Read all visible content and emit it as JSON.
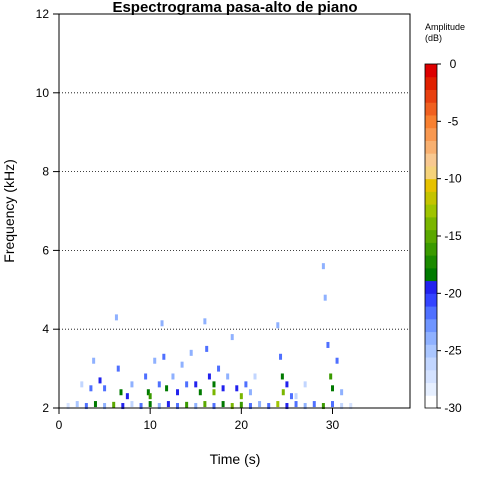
{
  "chart_data": {
    "type": "heatmap",
    "title": "Espectrograma pasa-alto de piano",
    "xlabel": "Time (s)",
    "ylabel": "Frequency (kHz)",
    "xlim": [
      0,
      38.5
    ],
    "ylim": [
      2,
      12
    ],
    "xticks": [
      "0",
      "10",
      "20",
      "30"
    ],
    "yticks": [
      "2",
      "4",
      "6",
      "8",
      "10",
      "12"
    ],
    "x_tick_values": [
      0,
      10,
      20,
      30
    ],
    "y_tick_values": [
      2,
      4,
      6,
      8,
      10,
      12
    ],
    "grid": "horizontal dotted lines at y ticks",
    "legend": {
      "title_line1": "Amplitude",
      "title_line2": "(dB)",
      "range": [
        -30,
        0
      ],
      "ticks": [
        "0",
        "-5",
        "-10",
        "-15",
        "-20",
        "-25",
        "-30"
      ],
      "tick_values": [
        0,
        -5,
        -10,
        -15,
        -20,
        -25,
        -30
      ],
      "colors_low_to_high": [
        "#ffffff",
        "#e6efff",
        "#d4e2ff",
        "#c2d6ff",
        "#aac6ff",
        "#8fb1ff",
        "#6f95ff",
        "#4f70ff",
        "#3344ff",
        "#2222ee",
        "#007a00",
        "#1b8a00",
        "#3a9a00",
        "#5aa800",
        "#7ab600",
        "#9fc400",
        "#c4c400",
        "#e6c200",
        "#f5d27a",
        "#f8c890",
        "#f8b070",
        "#f89850",
        "#f88030",
        "#f06020",
        "#e84010",
        "#e02000",
        "#dd0000"
      ]
    },
    "series": [
      {
        "name": "",
        "points": [
          [
            1,
            2.05,
            -28
          ],
          [
            2,
            2.1,
            -25
          ],
          [
            3,
            2.05,
            -22
          ],
          [
            4,
            2.1,
            -18
          ],
          [
            5,
            2.05,
            -24
          ],
          [
            6,
            2.08,
            -15
          ],
          [
            7,
            2.05,
            -20
          ],
          [
            8,
            2.1,
            -26
          ],
          [
            9,
            2.05,
            -22
          ],
          [
            10,
            2.1,
            -18
          ],
          [
            11,
            2.05,
            -24
          ],
          [
            12,
            2.1,
            -20
          ],
          [
            13,
            2.05,
            -22
          ],
          [
            14,
            2.08,
            -16
          ],
          [
            15,
            2.05,
            -24
          ],
          [
            16,
            2.1,
            -15
          ],
          [
            17,
            2.05,
            -22
          ],
          [
            18,
            2.1,
            -18
          ],
          [
            19,
            2.05,
            -14
          ],
          [
            20,
            2.08,
            -16
          ],
          [
            21,
            2.05,
            -22
          ],
          [
            22,
            2.1,
            -24
          ],
          [
            23,
            2.05,
            -22
          ],
          [
            24,
            2.1,
            -13
          ],
          [
            25,
            2.05,
            -20
          ],
          [
            26,
            2.1,
            -22
          ],
          [
            27,
            2.05,
            -24
          ],
          [
            28,
            2.1,
            -22
          ],
          [
            29,
            2.05,
            -16
          ],
          [
            30,
            2.1,
            -22
          ],
          [
            31,
            2.05,
            -26
          ],
          [
            32,
            2.05,
            -28
          ],
          [
            2.5,
            2.6,
            -26
          ],
          [
            3.8,
            3.2,
            -24
          ],
          [
            3.5,
            2.5,
            -22
          ],
          [
            4.5,
            2.7,
            -20
          ],
          [
            5,
            2.5,
            -22
          ],
          [
            6.3,
            4.3,
            -24
          ],
          [
            6.5,
            3.0,
            -22
          ],
          [
            6.8,
            2.4,
            -18
          ],
          [
            7.5,
            2.3,
            -20
          ],
          [
            8,
            2.6,
            -24
          ],
          [
            9.5,
            2.8,
            -22
          ],
          [
            9.8,
            2.4,
            -18
          ],
          [
            10,
            2.3,
            -16
          ],
          [
            10.5,
            3.2,
            -24
          ],
          [
            11,
            2.6,
            -22
          ],
          [
            11.3,
            4.15,
            -24
          ],
          [
            11.5,
            3.3,
            -22
          ],
          [
            11.8,
            2.5,
            -18
          ],
          [
            12.5,
            2.8,
            -24
          ],
          [
            13,
            2.4,
            -20
          ],
          [
            13.5,
            3.1,
            -24
          ],
          [
            14,
            2.6,
            -22
          ],
          [
            14.5,
            3.4,
            -24
          ],
          [
            15,
            2.6,
            -20
          ],
          [
            15.5,
            2.4,
            -18
          ],
          [
            16,
            4.2,
            -24
          ],
          [
            16.2,
            3.5,
            -22
          ],
          [
            16.5,
            2.8,
            -20
          ],
          [
            17,
            2.4,
            -14
          ],
          [
            17,
            2.6,
            -18
          ],
          [
            17.5,
            3.0,
            -22
          ],
          [
            18,
            2.5,
            -20
          ],
          [
            18.5,
            2.8,
            -24
          ],
          [
            19,
            3.8,
            -24
          ],
          [
            19.5,
            2.5,
            -20
          ],
          [
            20,
            2.3,
            -14
          ],
          [
            20.5,
            2.6,
            -22
          ],
          [
            21,
            2.4,
            -24
          ],
          [
            21.5,
            2.8,
            -26
          ],
          [
            24,
            4.1,
            -24
          ],
          [
            24.3,
            3.3,
            -22
          ],
          [
            24.5,
            2.8,
            -18
          ],
          [
            24.6,
            2.4,
            -14
          ],
          [
            25,
            2.6,
            -20
          ],
          [
            25.5,
            2.3,
            -22
          ],
          [
            29,
            5.6,
            -24
          ],
          [
            29.2,
            4.8,
            -24
          ],
          [
            29.5,
            3.6,
            -22
          ],
          [
            29.8,
            2.8,
            -16
          ],
          [
            30,
            2.5,
            -18
          ],
          [
            30.5,
            3.2,
            -22
          ],
          [
            31,
            2.4,
            -24
          ],
          [
            27,
            2.6,
            -26
          ],
          [
            26,
            2.3,
            -26
          ]
        ]
      }
    ]
  }
}
